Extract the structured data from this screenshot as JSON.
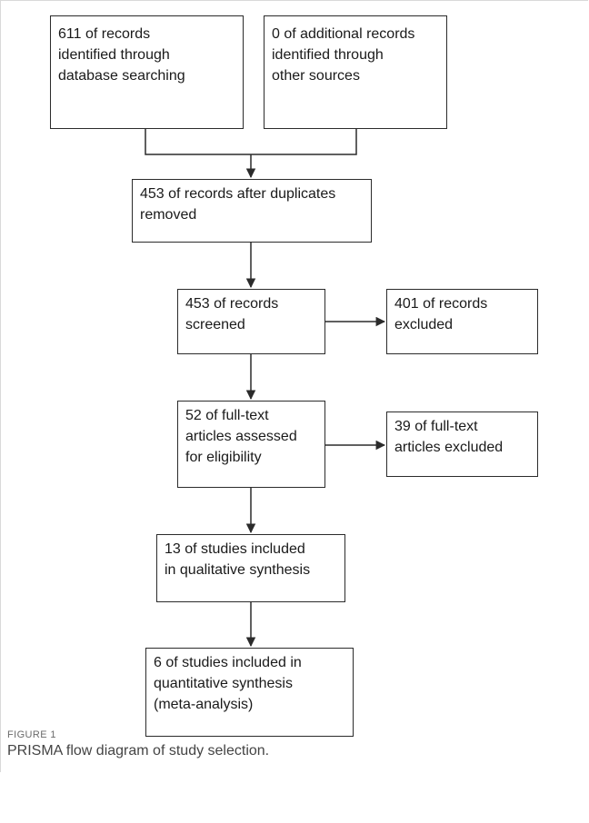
{
  "figure": {
    "label": "FIGURE 1",
    "caption": "PRISMA flow diagram of study selection."
  },
  "flow": {
    "identified_database": "611 of records\nidentified through\ndatabase searching",
    "identified_other": "0 of additional records\nidentified through\nother sources",
    "after_duplicates": "453 of records after duplicates\nremoved",
    "screened": "453 of records\nscreened",
    "excluded_records": "401 of records\nexcluded",
    "fulltext_assessed": "52 of full-text\narticles assessed\nfor eligibility",
    "fulltext_excluded": "39 of full-text\narticles excluded",
    "qualitative": "13 of studies included\nin qualitative synthesis",
    "quantitative": "6 of studies included in\nquantitative synthesis\n(meta-analysis)"
  }
}
